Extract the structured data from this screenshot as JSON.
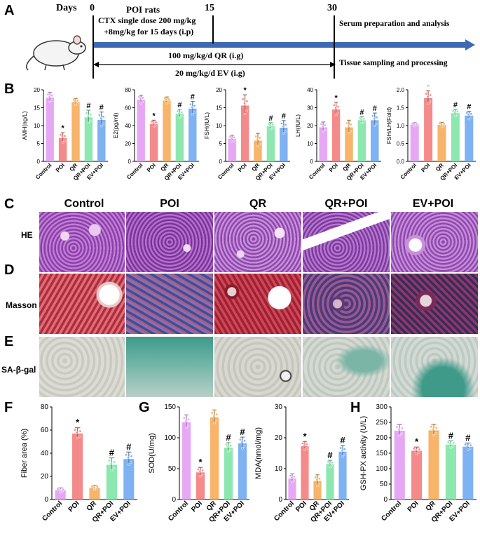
{
  "panels": {
    "A": "A",
    "B": "B",
    "C": "C",
    "D": "D",
    "E": "E",
    "F": "F",
    "G": "G",
    "H": "H"
  },
  "timeline": {
    "days_label": "Days",
    "day0": "0",
    "day15": "15",
    "day30": "30",
    "model": "POI rats",
    "ctx1": "CTX single dose 200 mg/kg",
    "ctx2": "+8mg/kg for 15 days (i.p)",
    "qr": "100 mg/kg/d QR (i.g)",
    "ev": "20 mg/kg/d  EV (i.g)",
    "serum": "Serum preparation and analysis",
    "tissue": "Tissue sampling and processing"
  },
  "groups": [
    "Control",
    "POI",
    "QR",
    "QR+POI",
    "EV+POI"
  ],
  "colors": {
    "Control": "#e6a8f5",
    "POI": "#f58a8a",
    "QR": "#f7b46a",
    "QR+POI": "#8de8b0",
    "EV+POI": "#7fb2f2"
  },
  "stain_rows": {
    "he": "HE",
    "masson": "Masson",
    "sagal": "SA-β-gal"
  },
  "chart_data": [
    {
      "id": "amh",
      "type": "bar",
      "ylabel": "AMH(ng/L)",
      "ylim": [
        0,
        20
      ],
      "ticks": [
        0,
        5,
        10,
        15,
        20
      ],
      "categories": [
        "Control",
        "POI",
        "QR",
        "QR+POI",
        "EV+POI"
      ],
      "values": [
        17.8,
        6.5,
        16.6,
        12.3,
        11.6
      ],
      "errors": [
        1.5,
        1.5,
        1.0,
        2.0,
        2.2
      ],
      "marks": [
        "",
        "*",
        "",
        "#",
        "#"
      ]
    },
    {
      "id": "e2",
      "type": "bar",
      "ylabel": "E2(pg/ml)",
      "ylim": [
        0,
        80
      ],
      "ticks": [
        0,
        20,
        40,
        60,
        80
      ],
      "categories": [
        "Control",
        "POI",
        "QR",
        "QR+POI",
        "EV+POI"
      ],
      "values": [
        69,
        42,
        68,
        53,
        59
      ],
      "errors": [
        5,
        4,
        4,
        5,
        8
      ],
      "marks": [
        "",
        "*",
        "",
        "#",
        "#"
      ]
    },
    {
      "id": "fsh",
      "type": "bar",
      "ylabel": "FSH(IU/L)",
      "ylim": [
        0,
        20
      ],
      "ticks": [
        0,
        5,
        10,
        15,
        20
      ],
      "categories": [
        "Control",
        "POI",
        "QR",
        "QR+POI",
        "EV+POI"
      ],
      "values": [
        6.3,
        15.6,
        5.8,
        9.8,
        9.4
      ],
      "errors": [
        1.0,
        3.0,
        2.0,
        1.0,
        2.0
      ],
      "marks": [
        "",
        "*",
        "",
        "#",
        "#"
      ]
    },
    {
      "id": "lh",
      "type": "bar",
      "ylabel": "LH(IU/L)",
      "ylim": [
        0,
        40
      ],
      "ticks": [
        0,
        10,
        20,
        30,
        40
      ],
      "categories": [
        "Control",
        "POI",
        "QR",
        "QR+POI",
        "EV+POI"
      ],
      "values": [
        19,
        29,
        19,
        23,
        23
      ],
      "errors": [
        3,
        4,
        4,
        2,
        4
      ],
      "marks": [
        "",
        "*",
        "",
        "#",
        "#"
      ]
    },
    {
      "id": "fshlh",
      "type": "bar",
      "ylabel": "FSH/LH(Fold)",
      "ylim": [
        0,
        2.0
      ],
      "ticks": [
        "0.0",
        "0.5",
        "1.0",
        "1.5",
        "2.0"
      ],
      "categories": [
        "Control",
        "POI",
        "QR",
        "QR+POI",
        "EV+POI"
      ],
      "values": [
        1.03,
        1.77,
        1.02,
        1.35,
        1.28
      ],
      "errors": [
        0.05,
        0.2,
        0.07,
        0.1,
        0.12
      ],
      "marks": [
        "",
        "*",
        "",
        "#",
        "#"
      ]
    },
    {
      "id": "fiber",
      "type": "bar",
      "ylabel": "Fiber area (%)",
      "ylim": [
        0,
        80
      ],
      "ticks": [
        0,
        20,
        40,
        60,
        80
      ],
      "categories": [
        "Control",
        "POI",
        "QR",
        "QR+POI",
        "EV+POI"
      ],
      "values": [
        8,
        57,
        10,
        30,
        35
      ],
      "errors": [
        2,
        5,
        2,
        6,
        6
      ],
      "marks": [
        "",
        "*",
        "",
        "#",
        "#"
      ]
    },
    {
      "id": "sod",
      "type": "bar",
      "ylabel": "SOD(U/mg)",
      "ylim": [
        0,
        150
      ],
      "ticks": [
        0,
        50,
        100,
        150
      ],
      "categories": [
        "Control",
        "POI",
        "QR",
        "QR+POI",
        "EV+POI"
      ],
      "values": [
        125,
        44,
        133,
        84,
        91
      ],
      "errors": [
        12,
        8,
        12,
        8,
        10
      ],
      "marks": [
        "",
        "*",
        "",
        "#",
        "#"
      ]
    },
    {
      "id": "mda",
      "type": "bar",
      "ylabel": "MDA(nmol/mg)",
      "ylim": [
        0,
        30
      ],
      "ticks": [
        0,
        10,
        20,
        30
      ],
      "categories": [
        "Control",
        "POI",
        "QR",
        "QR+POI",
        "EV+POI"
      ],
      "values": [
        6.8,
        17.3,
        6.0,
        11.5,
        15.5
      ],
      "errors": [
        1.5,
        1.5,
        2.0,
        1.2,
        2.0
      ],
      "marks": [
        "",
        "*",
        "",
        "#",
        "#"
      ]
    },
    {
      "id": "gsh",
      "type": "bar",
      "ylabel": "GSH-PX activity (U/L)",
      "ylim": [
        0,
        300
      ],
      "ticks": [
        0,
        50,
        100,
        150,
        200,
        250,
        300
      ],
      "categories": [
        "Control",
        "POI",
        "QR",
        "QR+POI",
        "EV+POI"
      ],
      "values": [
        223,
        158,
        224,
        178,
        171
      ],
      "errors": [
        20,
        12,
        20,
        12,
        12
      ],
      "marks": [
        "",
        "*",
        "",
        "#",
        "#"
      ]
    }
  ]
}
